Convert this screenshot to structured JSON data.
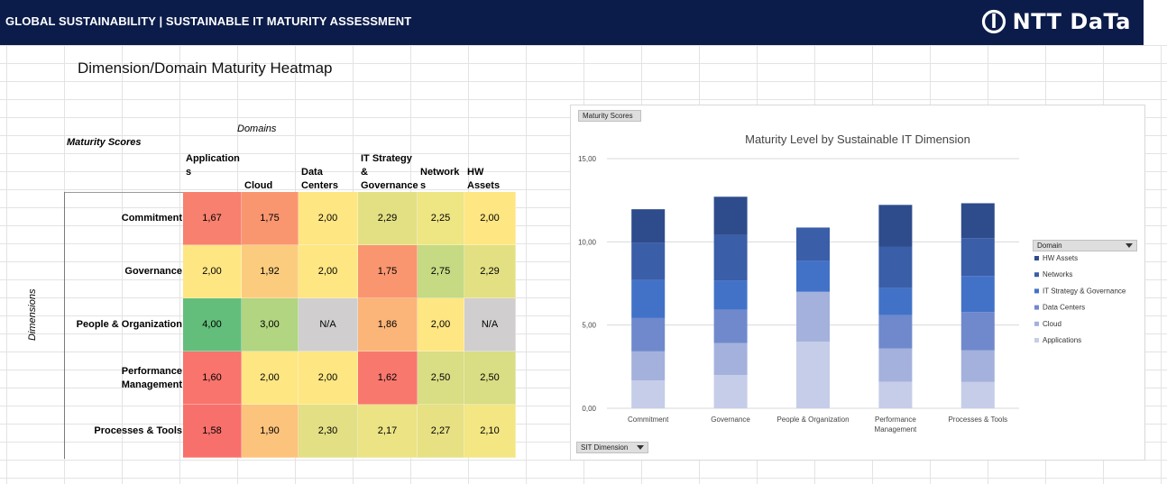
{
  "banner": {
    "title": "GLOBAL SUSTAINABILITY | SUSTAINABLE IT MATURITY ASSESSMENT",
    "logo_text": "NTT DaTa"
  },
  "sheet_title": "Dimension/Domain Maturity Heatmap",
  "labels": {
    "domains": "Domains",
    "maturity_scores": "Maturity Scores",
    "dimensions": "Dimensions"
  },
  "heatmap": {
    "columns": [
      {
        "line1": "Application",
        "line2": "s",
        "line3": ""
      },
      {
        "line1": "",
        "line2": "",
        "line3": "Cloud"
      },
      {
        "line1": "",
        "line2": "Data",
        "line3": "Centers"
      },
      {
        "line1": "IT Strategy",
        "line2": "&",
        "line3": "Governance"
      },
      {
        "line1": "",
        "line2": "Network",
        "line3": "s"
      },
      {
        "line1": "",
        "line2": "HW",
        "line3": "Assets"
      }
    ],
    "rows": [
      {
        "label": "Commitment",
        "cells": [
          {
            "v": "1,67",
            "c": "#f8806e"
          },
          {
            "v": "1,75",
            "c": "#f9966f"
          },
          {
            "v": "2,00",
            "c": "#fee683"
          },
          {
            "v": "2,29",
            "c": "#e3e084"
          },
          {
            "v": "2,25",
            "c": "#eee583"
          },
          {
            "v": "2,00",
            "c": "#fee683"
          }
        ]
      },
      {
        "label": "Governance",
        "cells": [
          {
            "v": "2,00",
            "c": "#fee683"
          },
          {
            "v": "1,92",
            "c": "#fccc7e"
          },
          {
            "v": "2,00",
            "c": "#fee683"
          },
          {
            "v": "1,75",
            "c": "#f9966f"
          },
          {
            "v": "2,75",
            "c": "#c5da82"
          },
          {
            "v": "2,29",
            "c": "#e3e084"
          }
        ]
      },
      {
        "label": "People & Organization",
        "cells": [
          {
            "v": "4,00",
            "c": "#63be7b"
          },
          {
            "v": "3,00",
            "c": "#b1d580"
          },
          {
            "v": "N/A",
            "c": "#d0cece"
          },
          {
            "v": "1,86",
            "c": "#fbb578"
          },
          {
            "v": "2,00",
            "c": "#fee683"
          },
          {
            "v": "N/A",
            "c": "#d0cece"
          }
        ]
      },
      {
        "label": "Performance Management",
        "label_l1": "Performance",
        "label_l2": "Management",
        "cells": [
          {
            "v": "1,60",
            "c": "#f8746c"
          },
          {
            "v": "2,00",
            "c": "#fee683"
          },
          {
            "v": "2,00",
            "c": "#fee683"
          },
          {
            "v": "1,62",
            "c": "#f8786d"
          },
          {
            "v": "2,50",
            "c": "#d9dd83"
          },
          {
            "v": "2,50",
            "c": "#d9dd83"
          }
        ]
      },
      {
        "label": "Processes & Tools",
        "cells": [
          {
            "v": "1,58",
            "c": "#f8706b"
          },
          {
            "v": "1,90",
            "c": "#fcc37c"
          },
          {
            "v": "2,30",
            "c": "#e2df84"
          },
          {
            "v": "2,17",
            "c": "#ebe384"
          },
          {
            "v": "2,27",
            "c": "#e7e184"
          },
          {
            "v": "2,10",
            "c": "#f3e683"
          }
        ]
      }
    ]
  },
  "chart_data": {
    "type": "bar",
    "stacked": true,
    "title": "Maturity Level by Sustainable IT Dimension",
    "field_button_top": "Maturity Scores",
    "field_button_axis": "SIT Dimension",
    "legend_title": "Domain",
    "categories": [
      "Commitment",
      "Governance",
      "People & Organization",
      "Performance Management",
      "Processes & Tools"
    ],
    "category_labels": [
      [
        "Commitment"
      ],
      [
        "Governance"
      ],
      [
        "People & Organization"
      ],
      [
        "Performance",
        "Management"
      ],
      [
        "Processes & Tools"
      ]
    ],
    "series": [
      {
        "name": "Applications",
        "color": "#c5cde8",
        "values": [
          1.67,
          2.0,
          4.0,
          1.6,
          1.58
        ]
      },
      {
        "name": "Cloud",
        "color": "#a4b1dc",
        "values": [
          1.75,
          1.92,
          3.0,
          2.0,
          1.9
        ]
      },
      {
        "name": "Data Centers",
        "color": "#6f89cc",
        "values": [
          2.0,
          2.0,
          0,
          2.0,
          2.3
        ]
      },
      {
        "name": "IT Strategy & Governance",
        "color": "#4272c8",
        "values": [
          2.29,
          1.75,
          1.86,
          1.62,
          2.17
        ]
      },
      {
        "name": "Networks",
        "color": "#3a5ea8",
        "values": [
          2.25,
          2.75,
          2.0,
          2.5,
          2.27
        ]
      },
      {
        "name": "HW Assets",
        "color": "#2e4c8c",
        "values": [
          2.0,
          2.29,
          0,
          2.5,
          2.1
        ]
      }
    ],
    "yticks": [
      "0,00",
      "5,00",
      "10,00",
      "15,00"
    ],
    "ylim": [
      0,
      15
    ],
    "grid": true,
    "legend_position": "right"
  }
}
